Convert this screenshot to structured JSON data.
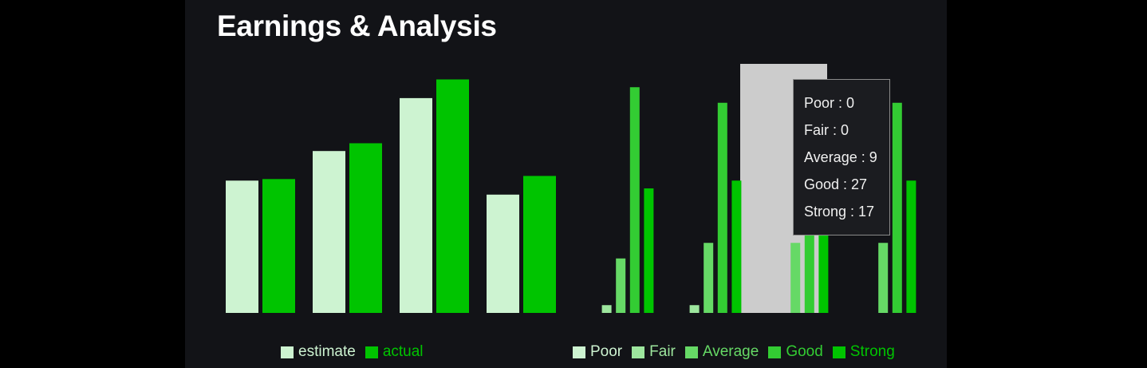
{
  "panel": {
    "title": "Earnings & Analysis"
  },
  "colors": {
    "background": "#121317",
    "estimate": "#cdf3d1",
    "actual": "#00c400",
    "poor": "#cdf3d1",
    "fair": "#9de69e",
    "average": "#66d966",
    "good": "#33cc33",
    "strong": "#00c400",
    "hover_band": "#cccccc"
  },
  "chart_data": [
    {
      "type": "bar",
      "categories": [
        "",
        "",
        "",
        ""
      ],
      "series": [
        {
          "name": "estimate",
          "values": [
            85,
            104,
            138,
            76
          ]
        },
        {
          "name": "actual",
          "values": [
            86,
            109,
            150,
            88
          ]
        }
      ],
      "ylim": [
        0,
        160
      ]
    },
    {
      "type": "bar",
      "categories": [
        "",
        "",
        "",
        ""
      ],
      "series": [
        {
          "name": "Poor",
          "values": [
            0,
            0,
            0,
            0
          ]
        },
        {
          "name": "Fair",
          "values": [
            1,
            1,
            0,
            0
          ]
        },
        {
          "name": "Average",
          "values": [
            7,
            9,
            9,
            9
          ]
        },
        {
          "name": "Good",
          "values": [
            29,
            27,
            27,
            27
          ]
        },
        {
          "name": "Strong",
          "values": [
            16,
            17,
            17,
            17
          ]
        }
      ],
      "ylim": [
        0,
        32
      ],
      "hovered_category_index": 2
    }
  ],
  "tooltip": {
    "rows": [
      "Poor : 0",
      "Fair : 0",
      "Average : 9",
      "Good : 27",
      "Strong : 17"
    ]
  }
}
